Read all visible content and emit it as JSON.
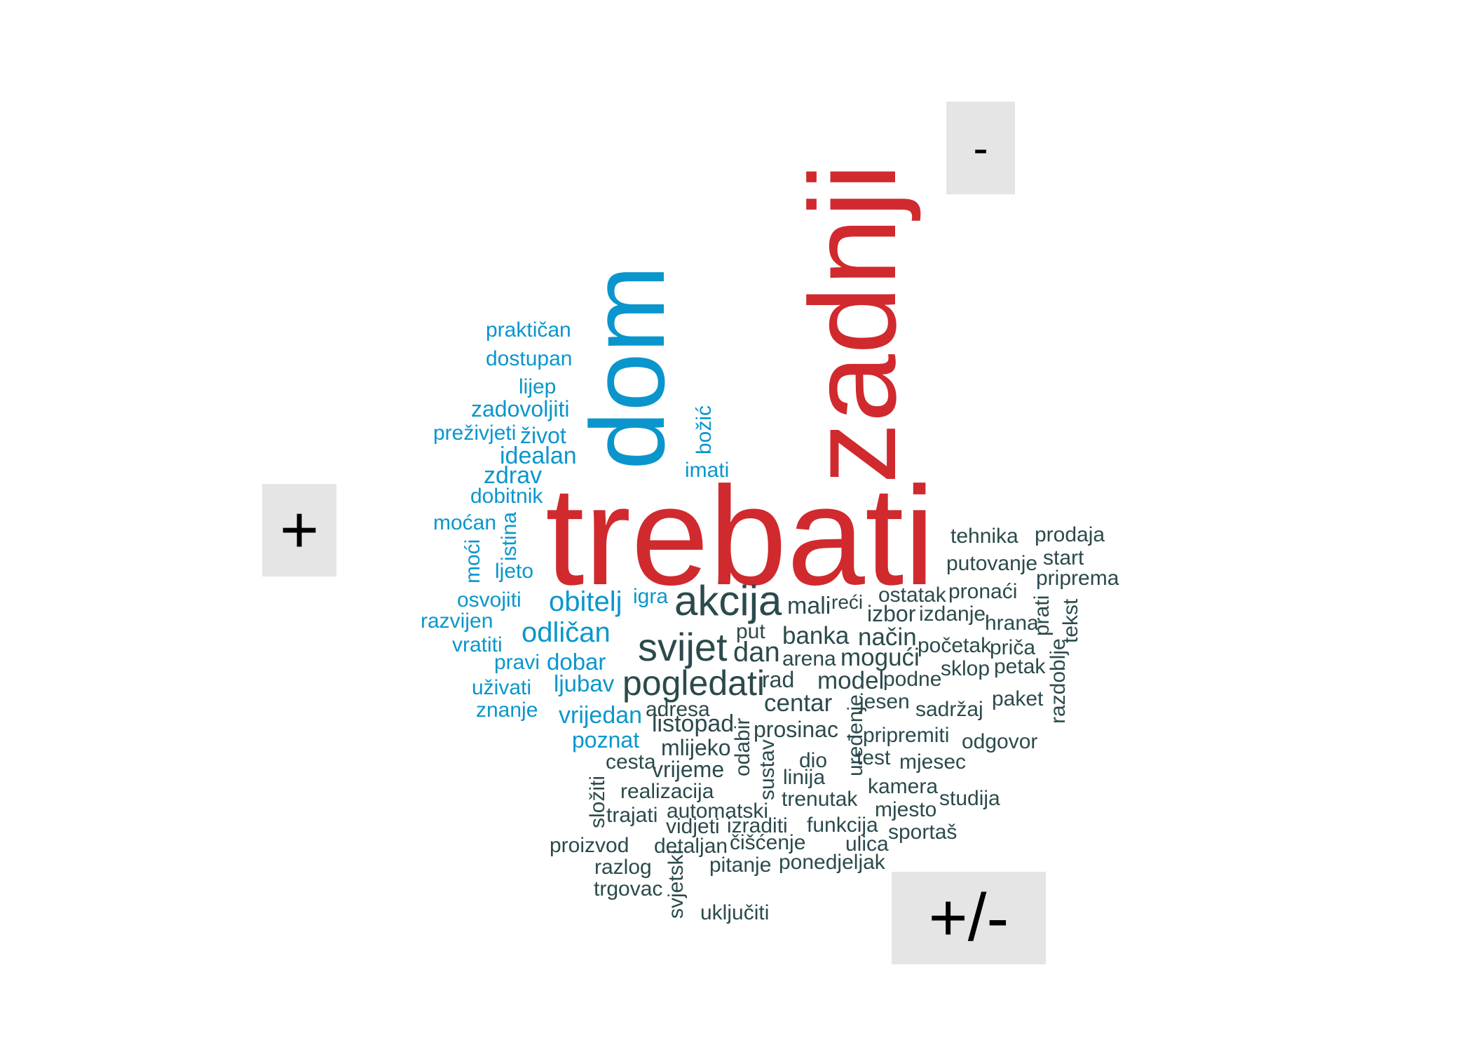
{
  "chart_data": {
    "type": "wordcloud",
    "groups": [
      {
        "label": "+",
        "color": "#0a96cc"
      },
      {
        "label": "-",
        "color": "#d02a2e"
      },
      {
        "label": "+/-",
        "color": "#2b4a4c"
      }
    ],
    "words": [
      {
        "text": "trebati",
        "group": "-",
        "size": 96
      },
      {
        "text": "zadnji",
        "group": "-",
        "size": 90
      },
      {
        "text": "dom",
        "group": "+",
        "size": 82
      },
      {
        "text": "praktičan",
        "group": "+",
        "size": 20
      },
      {
        "text": "dostupan",
        "group": "+",
        "size": 20
      },
      {
        "text": "lijep",
        "group": "+",
        "size": 20
      },
      {
        "text": "zadovoljiti",
        "group": "+",
        "size": 23
      },
      {
        "text": "preživjeti",
        "group": "+",
        "size": 20
      },
      {
        "text": "život",
        "group": "+",
        "size": 23
      },
      {
        "text": "idealan",
        "group": "+",
        "size": 24
      },
      {
        "text": "zdrav",
        "group": "+",
        "size": 24
      },
      {
        "text": "dobitnik",
        "group": "+",
        "size": 20
      },
      {
        "text": "moćan",
        "group": "+",
        "size": 20
      },
      {
        "text": "istina",
        "group": "+",
        "size": 20
      },
      {
        "text": "moći",
        "group": "+",
        "size": 20
      },
      {
        "text": "ljeto",
        "group": "+",
        "size": 20
      },
      {
        "text": "osvojiti",
        "group": "+",
        "size": 20
      },
      {
        "text": "razvijen",
        "group": "+",
        "size": 20
      },
      {
        "text": "vratiti",
        "group": "+",
        "size": 20
      },
      {
        "text": "pravi",
        "group": "+",
        "size": 20
      },
      {
        "text": "dobar",
        "group": "+",
        "size": 22
      },
      {
        "text": "ljubav",
        "group": "+",
        "size": 22
      },
      {
        "text": "uživati",
        "group": "+",
        "size": 20
      },
      {
        "text": "znanje",
        "group": "+",
        "size": 20
      },
      {
        "text": "obitelj",
        "group": "+",
        "size": 28
      },
      {
        "text": "odličan",
        "group": "+",
        "size": 28
      },
      {
        "text": "igra",
        "group": "+",
        "size": 20
      },
      {
        "text": "vrijedan",
        "group": "+",
        "size": 23
      },
      {
        "text": "poznat",
        "group": "+",
        "size": 22
      },
      {
        "text": "božić",
        "group": "+",
        "size": 20
      },
      {
        "text": "imati",
        "group": "+",
        "size": 20
      },
      {
        "text": "akcija",
        "group": "+/-",
        "size": 40
      },
      {
        "text": "svijet",
        "group": "+/-",
        "size": 38
      },
      {
        "text": "pogledati",
        "group": "+/-",
        "size": 34
      },
      {
        "text": "mali",
        "group": "+/-",
        "size": 24
      },
      {
        "text": "reći",
        "group": "+/-",
        "size": 20
      },
      {
        "text": "izbor",
        "group": "+/-",
        "size": 22
      },
      {
        "text": "ostatak",
        "group": "+/-",
        "size": 20
      },
      {
        "text": "pronaći",
        "group": "+/-",
        "size": 20
      },
      {
        "text": "tehnika",
        "group": "+/-",
        "size": 20
      },
      {
        "text": "prodaja",
        "group": "+/-",
        "size": 20
      },
      {
        "text": "putovanje",
        "group": "+/-",
        "size": 20
      },
      {
        "text": "start",
        "group": "+/-",
        "size": 20
      },
      {
        "text": "priprema",
        "group": "+/-",
        "size": 20
      },
      {
        "text": "izdanje",
        "group": "+/-",
        "size": 20
      },
      {
        "text": "hrana",
        "group": "+/-",
        "size": 20
      },
      {
        "text": "prati",
        "group": "+/-",
        "size": 20
      },
      {
        "text": "tekst",
        "group": "+/-",
        "size": 20
      },
      {
        "text": "put",
        "group": "+/-",
        "size": 20
      },
      {
        "text": "banka",
        "group": "+/-",
        "size": 24
      },
      {
        "text": "način",
        "group": "+/-",
        "size": 24
      },
      {
        "text": "početak",
        "group": "+/-",
        "size": 20
      },
      {
        "text": "priča",
        "group": "+/-",
        "size": 20
      },
      {
        "text": "dan",
        "group": "+/-",
        "size": 28
      },
      {
        "text": "arena",
        "group": "+/-",
        "size": 20
      },
      {
        "text": "mogući",
        "group": "+/-",
        "size": 24
      },
      {
        "text": "sklop",
        "group": "+/-",
        "size": 20
      },
      {
        "text": "petak",
        "group": "+/-",
        "size": 20
      },
      {
        "text": "razdoblje",
        "group": "+/-",
        "size": 20
      },
      {
        "text": "rad",
        "group": "+/-",
        "size": 22
      },
      {
        "text": "model",
        "group": "+/-",
        "size": 24
      },
      {
        "text": "podne",
        "group": "+/-",
        "size": 20
      },
      {
        "text": "adresa",
        "group": "+/-",
        "size": 20
      },
      {
        "text": "centar",
        "group": "+/-",
        "size": 24
      },
      {
        "text": "uređenje",
        "group": "+/-",
        "size": 20
      },
      {
        "text": "jesen",
        "group": "+/-",
        "size": 20
      },
      {
        "text": "sadržaj",
        "group": "+/-",
        "size": 20
      },
      {
        "text": "paket",
        "group": "+/-",
        "size": 20
      },
      {
        "text": "listopad",
        "group": "+/-",
        "size": 24
      },
      {
        "text": "prosinac",
        "group": "+/-",
        "size": 22
      },
      {
        "text": "pripremiti",
        "group": "+/-",
        "size": 20
      },
      {
        "text": "odgovor",
        "group": "+/-",
        "size": 20
      },
      {
        "text": "mlijeko",
        "group": "+/-",
        "size": 22
      },
      {
        "text": "odabir",
        "group": "+/-",
        "size": 20
      },
      {
        "text": "cesta",
        "group": "+/-",
        "size": 20
      },
      {
        "text": "vrijeme",
        "group": "+/-",
        "size": 22
      },
      {
        "text": "sustav",
        "group": "+/-",
        "size": 20
      },
      {
        "text": "dio",
        "group": "+/-",
        "size": 20
      },
      {
        "text": "test",
        "group": "+/-",
        "size": 20
      },
      {
        "text": "mjesec",
        "group": "+/-",
        "size": 20
      },
      {
        "text": "linija",
        "group": "+/-",
        "size": 20
      },
      {
        "text": "realizacija",
        "group": "+/-",
        "size": 20
      },
      {
        "text": "kamera",
        "group": "+/-",
        "size": 20
      },
      {
        "text": "studija",
        "group": "+/-",
        "size": 20
      },
      {
        "text": "trenutak",
        "group": "+/-",
        "size": 20
      },
      {
        "text": "složiti",
        "group": "+/-",
        "size": 20
      },
      {
        "text": "trajati",
        "group": "+/-",
        "size": 20
      },
      {
        "text": "automatski",
        "group": "+/-",
        "size": 20
      },
      {
        "text": "mjesto",
        "group": "+/-",
        "size": 20
      },
      {
        "text": "vidjeti",
        "group": "+/-",
        "size": 20
      },
      {
        "text": "izraditi",
        "group": "+/-",
        "size": 20
      },
      {
        "text": "funkcija",
        "group": "+/-",
        "size": 20
      },
      {
        "text": "sportaš",
        "group": "+/-",
        "size": 20
      },
      {
        "text": "čišćenje",
        "group": "+/-",
        "size": 20
      },
      {
        "text": "ulica",
        "group": "+/-",
        "size": 20
      },
      {
        "text": "proizvod",
        "group": "+/-",
        "size": 20
      },
      {
        "text": "detaljan",
        "group": "+/-",
        "size": 20
      },
      {
        "text": "ponedjeljak",
        "group": "+/-",
        "size": 20
      },
      {
        "text": "razlog",
        "group": "+/-",
        "size": 20
      },
      {
        "text": "pitanje",
        "group": "+/-",
        "size": 20
      },
      {
        "text": "svjetski",
        "group": "+/-",
        "size": 20
      },
      {
        "text": "trgovac",
        "group": "+/-",
        "size": 20
      },
      {
        "text": "uključiti",
        "group": "+/-",
        "size": 20
      }
    ]
  }
}
